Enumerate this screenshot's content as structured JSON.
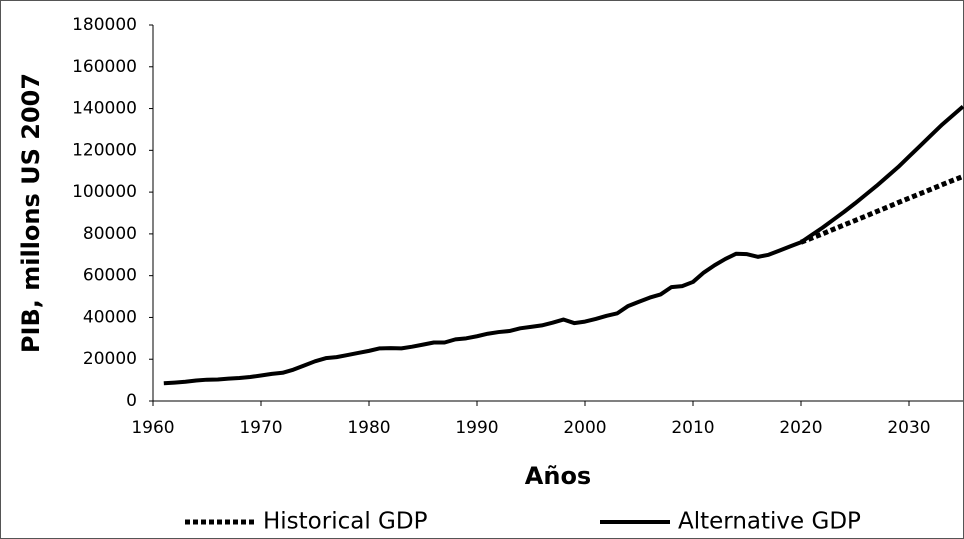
{
  "chart_data": {
    "type": "line",
    "y_label": "PIB, millons US 2007",
    "x_label": "Años",
    "x": [
      1961,
      1962,
      1963,
      1964,
      1965,
      1966,
      1967,
      1968,
      1969,
      1970,
      1971,
      1972,
      1973,
      1974,
      1975,
      1976,
      1977,
      1978,
      1979,
      1980,
      1981,
      1982,
      1983,
      1984,
      1985,
      1986,
      1987,
      1988,
      1989,
      1990,
      1991,
      1992,
      1993,
      1994,
      1995,
      1996,
      1997,
      1998,
      1999,
      2000,
      2001,
      2002,
      2003,
      2004,
      2005,
      2006,
      2007,
      2008,
      2009,
      2010,
      2011,
      2012,
      2013,
      2014,
      2015,
      2016,
      2017,
      2018,
      2019,
      2020,
      2021,
      2022,
      2023,
      2024,
      2025,
      2026,
      2027,
      2028,
      2029,
      2030,
      2031,
      2032,
      2033,
      2034,
      2035
    ],
    "series": [
      {
        "name": "Historical GDP",
        "color": "#000000",
        "style": "dotted",
        "values": [
          null,
          null,
          null,
          null,
          null,
          null,
          null,
          null,
          null,
          null,
          null,
          null,
          null,
          null,
          null,
          null,
          null,
          null,
          null,
          null,
          null,
          null,
          null,
          null,
          null,
          null,
          null,
          null,
          null,
          null,
          null,
          null,
          null,
          null,
          null,
          null,
          null,
          null,
          null,
          null,
          null,
          null,
          null,
          null,
          null,
          null,
          null,
          null,
          null,
          null,
          null,
          null,
          null,
          null,
          null,
          null,
          null,
          null,
          null,
          76000,
          78000,
          80000,
          82200,
          84300,
          86400,
          88500,
          90700,
          92800,
          95000,
          97100,
          99200,
          101300,
          103400,
          105500,
          107500
        ]
      },
      {
        "name": "Alternative GDP",
        "color": "#000000",
        "style": "solid",
        "values": [
          8500,
          8800,
          9200,
          9800,
          10200,
          10300,
          10700,
          11000,
          11500,
          12200,
          13000,
          13500,
          15000,
          17000,
          19000,
          20500,
          21000,
          22000,
          23000,
          24000,
          25200,
          25300,
          25200,
          26000,
          27000,
          28000,
          28000,
          29500,
          30000,
          31000,
          32200,
          33000,
          33500,
          34800,
          35500,
          36200,
          37500,
          39000,
          37300,
          38000,
          39300,
          40800,
          42000,
          45500,
          47500,
          49500,
          51000,
          54500,
          55000,
          57000,
          61500,
          65000,
          68000,
          70500,
          70300,
          69000,
          70000,
          72000,
          74000,
          76000,
          79500,
          83000,
          86800,
          90600,
          94600,
          98800,
          103000,
          107500,
          112000,
          117000,
          122000,
          127000,
          132000,
          136500,
          141000
        ]
      }
    ],
    "xlim": [
      1960,
      2035
    ],
    "xticks": [
      1960,
      1970,
      1980,
      1990,
      2000,
      2010,
      2020,
      2030
    ],
    "ylim": [
      0,
      180000
    ],
    "yticks": [
      0,
      20000,
      40000,
      60000,
      80000,
      100000,
      120000,
      140000,
      160000,
      180000
    ],
    "grid": false,
    "legend": "bottom"
  }
}
